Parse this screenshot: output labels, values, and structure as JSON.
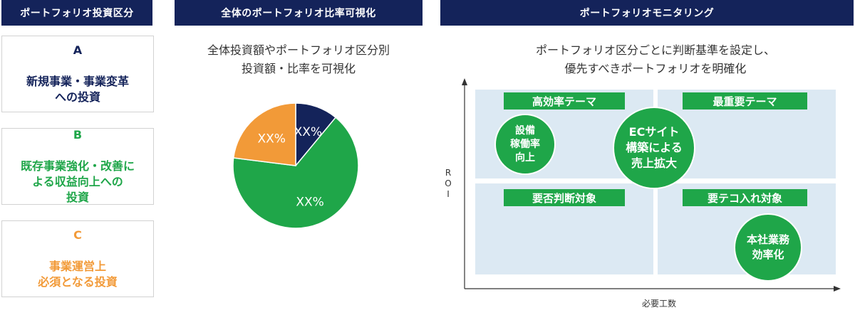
{
  "headers": {
    "categories": "ポートフォリオ投資区分",
    "overview": "全体のポートフォリオ比率可視化",
    "monitoring": "ポートフォリオモニタリング"
  },
  "categories": [
    {
      "letter": "A",
      "text": "新規事業・事業変革\nへの投資",
      "color": "#14235a"
    },
    {
      "letter": "B",
      "text": "既存事業強化・改善に\nよる収益向上への\n投資",
      "color": "#1fa649"
    },
    {
      "letter": "C",
      "text": "事業運営上\n必須となる投資",
      "color": "#f29a38"
    }
  ],
  "pie_caption": "全体投資額やポートフォリオ区分別\n投資額・比率を可視化",
  "chart_data": {
    "type": "pie",
    "slices": [
      {
        "category": "A",
        "label": "XX%",
        "value": 0.11,
        "color": "#14235a"
      },
      {
        "category": "B",
        "label": "XX%",
        "value": 0.66,
        "color": "#1fa649"
      },
      {
        "category": "C",
        "label": "XX%",
        "value": 0.23,
        "color": "#f29a38"
      }
    ]
  },
  "monitoring": {
    "caption": "ポートフォリオ区分ごとに判断基準を設定し、\n優先すべきポートフォリオを明確化",
    "y_axis_label": "R\nO\nI",
    "x_axis_label": "必要工数",
    "quadrants": {
      "top_left": "高効率テーマ",
      "top_right": "最重要テーマ",
      "bottom_left": "要否判断対象",
      "bottom_right": "要テコ入れ対象"
    },
    "circles": {
      "facility": "設備\n稼働率\n向上",
      "ec_site": "ECサイト\n構築による\n売上拡大",
      "head_office": "本社業務\n効率化"
    }
  }
}
